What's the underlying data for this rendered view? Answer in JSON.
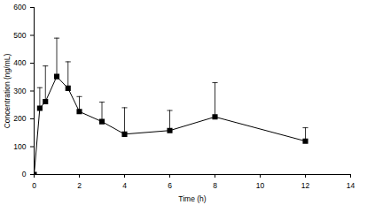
{
  "chart_data": {
    "type": "line",
    "x_label": "Time (h)",
    "y_label": "Concentration (ng/mL)",
    "x": [
      0,
      0.25,
      0.5,
      1,
      1.5,
      2,
      3,
      4,
      6,
      8,
      12
    ],
    "values": [
      0,
      238,
      262,
      352,
      310,
      226,
      190,
      145,
      158,
      207,
      120
    ],
    "error_upper": [
      0,
      74,
      128,
      138,
      95,
      54,
      70,
      95,
      72,
      123,
      48
    ],
    "color": "#000000",
    "marker": "square",
    "line_style": "solid",
    "xlim": [
      0,
      14
    ],
    "xticks": [
      0,
      2,
      4,
      6,
      8,
      10,
      12,
      14
    ],
    "ylim": [
      0,
      600
    ],
    "yticks": [
      0,
      100,
      200,
      300,
      400,
      500,
      600
    ],
    "grid": false
  }
}
